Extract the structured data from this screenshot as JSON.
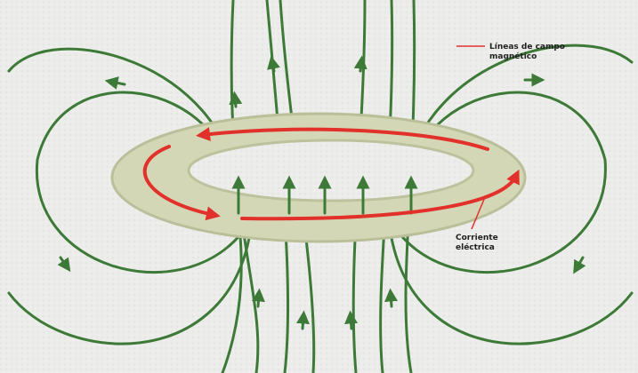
{
  "labels": {
    "field_lines": [
      "Líneas de campo",
      "magnético"
    ],
    "current": [
      "Corriente",
      "eléctrica"
    ]
  }
}
